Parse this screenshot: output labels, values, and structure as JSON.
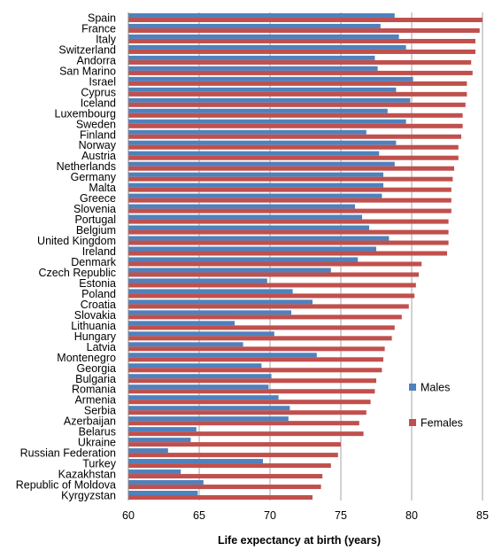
{
  "chart_data": {
    "type": "bar",
    "orientation": "horizontal",
    "xlabel": "Life expectancy at birth (years)",
    "xlim": [
      60,
      85
    ],
    "xticks": [
      60,
      65,
      70,
      75,
      80,
      85
    ],
    "grid": "vertical gridlines at each tick",
    "legend_placement": "right, inside plot",
    "categories": [
      "Spain",
      "France",
      "Italy",
      "Switzerland",
      "Andorra",
      "San Marino",
      "Israel",
      "Cyprus",
      "Iceland",
      "Luxembourg",
      "Sweden",
      "Finland",
      "Norway",
      "Austria",
      "Netherlands",
      "Germany",
      "Malta",
      "Greece",
      "Slovenia",
      "Portugal",
      "Belgium",
      "United Kingdom",
      "Ireland",
      "Denmark",
      "Czech Republic",
      "Estonia",
      "Poland",
      "Croatia",
      "Slovakia",
      "Lithuania",
      "Hungary",
      "Latvia",
      "Montenegro",
      "Georgia",
      "Bulgaria",
      "Romania",
      "Armenia",
      "Serbia",
      "Azerbaijan",
      "Belarus",
      "Ukraine",
      "Russian Federation",
      "Turkey",
      "Kazakhstan",
      "Republic of Moldova",
      "Kyrgyzstan"
    ],
    "series": [
      {
        "name": "Males",
        "color": "#4f81bd",
        "values": [
          78.8,
          77.8,
          79.1,
          79.6,
          77.4,
          77.6,
          80.1,
          78.9,
          79.9,
          78.3,
          79.6,
          76.8,
          78.9,
          77.7,
          78.8,
          78.0,
          78.0,
          77.9,
          76.0,
          76.5,
          77.0,
          78.4,
          77.5,
          76.2,
          74.3,
          69.8,
          71.6,
          73.0,
          71.5,
          67.5,
          70.3,
          68.1,
          73.3,
          69.4,
          70.1,
          69.9,
          70.6,
          71.4,
          71.3,
          64.8,
          64.4,
          62.8,
          69.5,
          63.7,
          65.3,
          64.9
        ]
      },
      {
        "name": "Females",
        "color": "#c0504d",
        "values": [
          85.0,
          84.8,
          84.5,
          84.5,
          84.2,
          84.3,
          83.9,
          83.9,
          83.8,
          83.6,
          83.6,
          83.5,
          83.3,
          83.3,
          83.0,
          82.9,
          82.8,
          82.8,
          82.8,
          82.6,
          82.6,
          82.6,
          82.5,
          80.7,
          80.5,
          80.3,
          80.2,
          79.8,
          79.3,
          78.8,
          78.6,
          78.1,
          78.0,
          77.9,
          77.5,
          77.4,
          77.1,
          76.8,
          76.3,
          76.6,
          75.0,
          74.8,
          74.3,
          73.7,
          73.6,
          73.0
        ]
      }
    ]
  }
}
